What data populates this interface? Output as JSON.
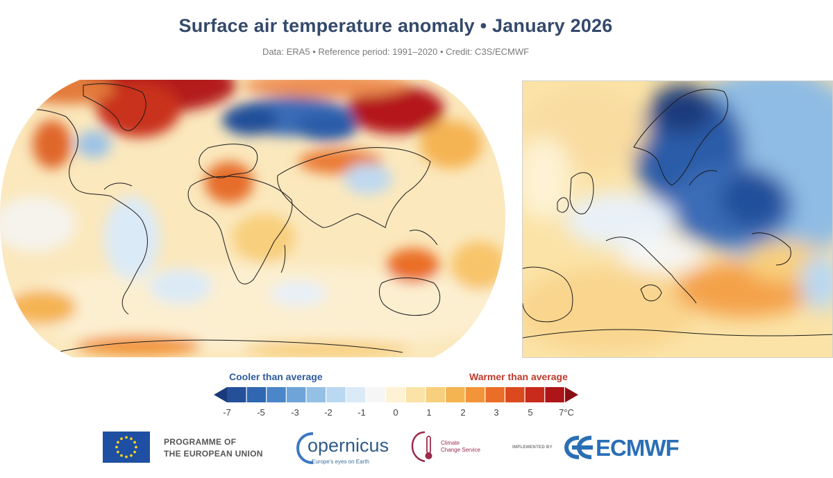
{
  "title": "Surface air temperature anomaly • January 2026",
  "subtitle": "Data: ERA5 • Reference period: 1991–2020 • Credit: C3S/ECMWF",
  "legend": {
    "cooler_label": "Cooler than average",
    "warmer_label": "Warmer than average",
    "tick_labels": [
      "-7",
      "-5",
      "-3",
      "-2",
      "-1",
      "0",
      "1",
      "2",
      "3",
      "5",
      "7°C"
    ],
    "colors": [
      "#1b3a7a",
      "#24509a",
      "#2f67b2",
      "#4a86c8",
      "#6ea4d8",
      "#95c0e6",
      "#bad8f1",
      "#dbeaf7",
      "#f6f6f6",
      "#fdf2d3",
      "#fbe3a7",
      "#f8cf7d",
      "#f5b452",
      "#f29437",
      "#ea6e27",
      "#db4a1f",
      "#c82a1c",
      "#ae1518",
      "#8a0d14"
    ],
    "unit": "°C"
  },
  "maps": {
    "world": "global-anomaly-map",
    "europe": "europe-anomaly-map"
  },
  "logos": {
    "eu_line1": "PROGRAMME OF",
    "eu_line2": "THE EUROPEAN UNION",
    "copernicus": "opernicus",
    "copernicus_tagline": "Europe's eyes on Earth",
    "ccs_line1": "Climate",
    "ccs_line2": "Change Service",
    "implemented_by": "IMPLEMENTED BY",
    "ecmwf": "ECMWF"
  }
}
